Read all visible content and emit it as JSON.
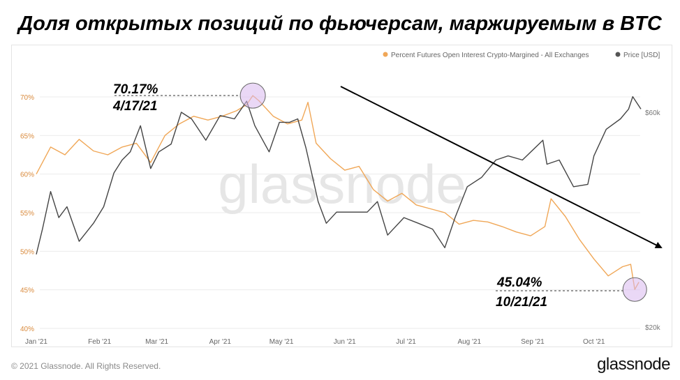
{
  "header": {
    "title": "Доля открытых позиций по фьючерсам, маржируемым в BTC"
  },
  "footer": {
    "copyright": "© 2021 Glassnode. All Rights Reserved.",
    "logo": "glassnode"
  },
  "watermark": "glassnode",
  "colors": {
    "futures": "#f0a757",
    "price": "#444444",
    "grid": "#ebebeb",
    "left_tick": "#d98a3c",
    "right_tick": "#777777",
    "highlight": "#d9b8ef"
  },
  "annotations": [
    {
      "value": "70.17%",
      "date": "4/17/21"
    },
    {
      "value": "45.04%",
      "date": "10/21/21"
    }
  ],
  "chart_data": {
    "type": "line",
    "title": "Доля открытых позиций по фьючерсам, маржируемым в BTC",
    "legend": {
      "position": "top-right",
      "items": [
        "Percent Futures Open Interest Crypto-Margined - All Exchanges",
        "Price [USD]"
      ]
    },
    "x_ticks": [
      "Jan '21",
      "Feb '21",
      "Mar '21",
      "Apr '21",
      "May '21",
      "Jun '21",
      "Jul '21",
      "Aug '21",
      "Sep '21",
      "Oct '21"
    ],
    "y_left": {
      "ticks": [
        "70%",
        "65%",
        "60%",
        "55%",
        "50%",
        "45%",
        "40%"
      ],
      "range": [
        40,
        70
      ]
    },
    "y_right": {
      "ticks": [
        "$60k",
        "$20k"
      ],
      "scale": "log"
    },
    "grid": true,
    "series": [
      {
        "name": "Percent Futures Open Interest Crypto-Margined - All Exchanges",
        "axis": "left",
        "x": [
          "2021-01-01",
          "2021-01-08",
          "2021-01-15",
          "2021-01-22",
          "2021-01-29",
          "2021-02-05",
          "2021-02-12",
          "2021-02-19",
          "2021-02-26",
          "2021-03-05",
          "2021-03-12",
          "2021-03-19",
          "2021-03-26",
          "2021-04-02",
          "2021-04-09",
          "2021-04-14",
          "2021-04-17",
          "2021-04-20",
          "2021-04-27",
          "2021-05-04",
          "2021-05-11",
          "2021-05-14",
          "2021-05-18",
          "2021-05-25",
          "2021-06-01",
          "2021-06-08",
          "2021-06-15",
          "2021-06-22",
          "2021-06-29",
          "2021-07-06",
          "2021-07-13",
          "2021-07-20",
          "2021-07-27",
          "2021-08-03",
          "2021-08-10",
          "2021-08-17",
          "2021-08-24",
          "2021-08-31",
          "2021-09-07",
          "2021-09-10",
          "2021-09-17",
          "2021-09-24",
          "2021-10-01",
          "2021-10-08",
          "2021-10-15",
          "2021-10-19",
          "2021-10-21",
          "2021-10-23"
        ],
        "y": [
          60.0,
          63.5,
          62.5,
          64.5,
          63.0,
          62.5,
          63.5,
          64.0,
          61.5,
          65.0,
          66.5,
          67.5,
          67.0,
          67.5,
          68.2,
          69.0,
          70.17,
          69.5,
          67.5,
          66.5,
          67.0,
          69.3,
          64.0,
          62.0,
          60.5,
          61.0,
          58.0,
          56.5,
          57.5,
          56.0,
          55.5,
          55.0,
          53.5,
          54.0,
          53.8,
          53.2,
          52.5,
          52.0,
          53.2,
          56.8,
          54.5,
          51.5,
          49.0,
          46.8,
          48.0,
          48.3,
          45.04,
          46.0
        ]
      },
      {
        "name": "Price [USD]",
        "axis": "right",
        "x": [
          "2021-01-01",
          "2021-01-04",
          "2021-01-08",
          "2021-01-12",
          "2021-01-16",
          "2021-01-22",
          "2021-01-29",
          "2021-02-03",
          "2021-02-08",
          "2021-02-12",
          "2021-02-16",
          "2021-02-21",
          "2021-02-26",
          "2021-03-02",
          "2021-03-08",
          "2021-03-13",
          "2021-03-18",
          "2021-03-25",
          "2021-04-01",
          "2021-04-08",
          "2021-04-14",
          "2021-04-18",
          "2021-04-25",
          "2021-04-30",
          "2021-05-05",
          "2021-05-09",
          "2021-05-13",
          "2021-05-19",
          "2021-05-23",
          "2021-05-28",
          "2021-06-05",
          "2021-06-12",
          "2021-06-17",
          "2021-06-22",
          "2021-06-30",
          "2021-07-07",
          "2021-07-14",
          "2021-07-20",
          "2021-07-25",
          "2021-07-31",
          "2021-08-07",
          "2021-08-14",
          "2021-08-20",
          "2021-08-27",
          "2021-09-06",
          "2021-09-08",
          "2021-09-14",
          "2021-09-21",
          "2021-09-28",
          "2021-10-01",
          "2021-10-07",
          "2021-10-14",
          "2021-10-18",
          "2021-10-20",
          "2021-10-24"
        ],
        "y": [
          29000,
          33000,
          40000,
          35000,
          37000,
          31000,
          34000,
          37000,
          44000,
          47000,
          49000,
          56000,
          45000,
          49000,
          51000,
          60000,
          58000,
          52000,
          59000,
          58000,
          63500,
          56000,
          49000,
          57000,
          57000,
          58000,
          50000,
          38000,
          34000,
          36000,
          36000,
          36000,
          38000,
          32000,
          35000,
          34000,
          33000,
          30000,
          35000,
          41000,
          43000,
          47000,
          48000,
          47000,
          52000,
          46000,
          47000,
          41000,
          41500,
          48000,
          55000,
          58000,
          61000,
          65000,
          61000
        ]
      }
    ]
  }
}
